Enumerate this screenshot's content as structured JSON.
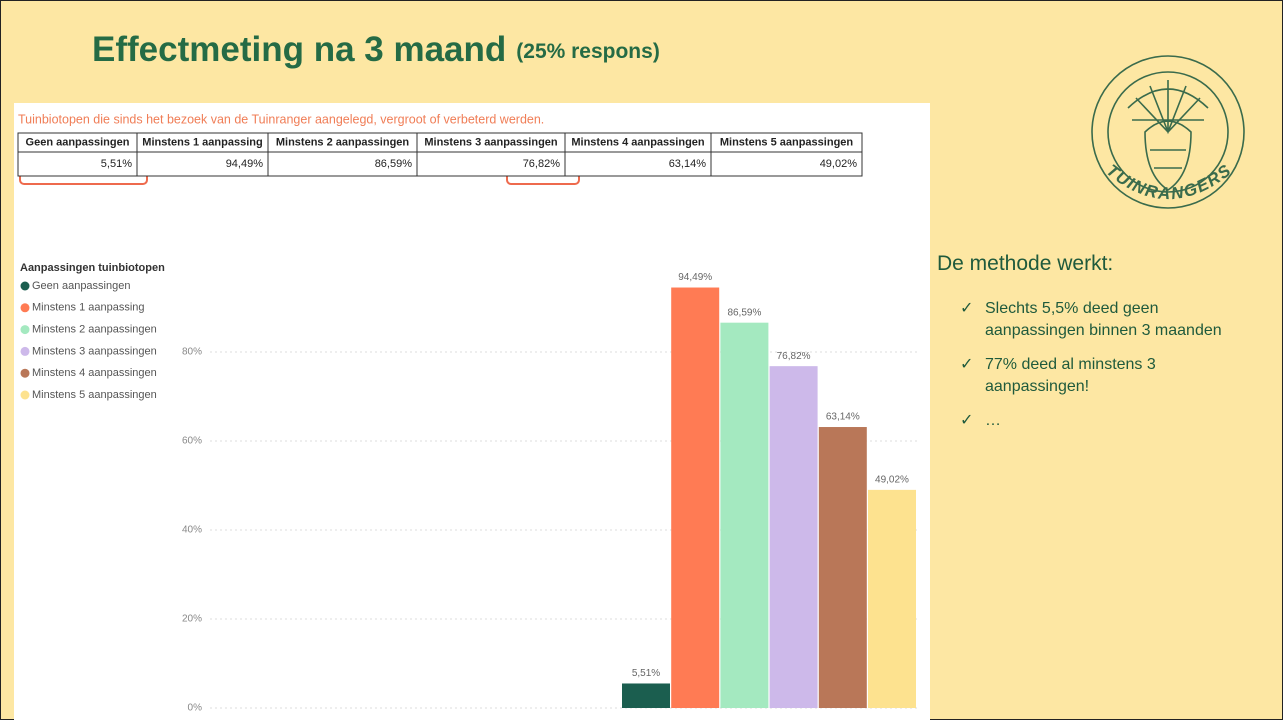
{
  "slide": {
    "title": "Effectmeting na 3 maand",
    "title_note": "(25% respons)"
  },
  "logo": {
    "text": "TUINRANGERS"
  },
  "table": {
    "caption": "Tuinbiotopen die sinds het bezoek van de Tuinranger aangelegd, vergroot of verbeterd werden.",
    "header": [
      "Geen aanpassingen",
      "Minstens 1 aanpassing",
      "Minstens 2 aanpassingen",
      "Minstens 3 aanpassingen",
      "Minstens 4 aanpassingen",
      "Minstens 5 aanpassingen"
    ],
    "rows": [
      [
        "5,51%",
        "94,49%",
        "86,59%",
        "76,82%",
        "63,14%",
        "49,02%"
      ]
    ]
  },
  "sidebar": {
    "heading": "De methode werkt:",
    "bullets": [
      "Slechts 5,5% deed geen aanpassingen binnen 3 maanden",
      "77% deed al minstens 3 aanpassingen!",
      "…"
    ]
  },
  "chart_data": {
    "type": "bar",
    "legend_title": "Aanpassingen tuinbiotopen",
    "legend": "top-left",
    "grid": true,
    "ylim": [
      0,
      100
    ],
    "yticks": [
      {
        "value": 0,
        "label": "0%"
      },
      {
        "value": 20,
        "label": "20%"
      },
      {
        "value": 40,
        "label": "40%"
      },
      {
        "value": 60,
        "label": "60%"
      },
      {
        "value": 80,
        "label": "80%"
      }
    ],
    "series": [
      {
        "name": "Geen aanpassingen",
        "color": "#1b5e4f",
        "values": [
          5.51
        ],
        "value_labels": [
          "5,51%"
        ]
      },
      {
        "name": "Minstens 1 aanpassing",
        "color": "#ff7b54",
        "values": [
          94.49
        ],
        "value_labels": [
          "94,49%"
        ]
      },
      {
        "name": "Minstens 2 aanpassingen",
        "color": "#a4e9c0",
        "values": [
          86.59
        ],
        "value_labels": [
          "86,59%"
        ]
      },
      {
        "name": "Minstens 3 aanpassingen",
        "color": "#cdb9ea",
        "values": [
          76.82
        ],
        "value_labels": [
          "76,82%"
        ]
      },
      {
        "name": "Minstens 4 aanpassingen",
        "color": "#b97758",
        "values": [
          63.14
        ],
        "value_labels": [
          "63,14%"
        ]
      },
      {
        "name": "Minstens 5 aanpassingen",
        "color": "#fde28f",
        "values": [
          49.02
        ],
        "value_labels": [
          "49,02%"
        ]
      }
    ]
  }
}
